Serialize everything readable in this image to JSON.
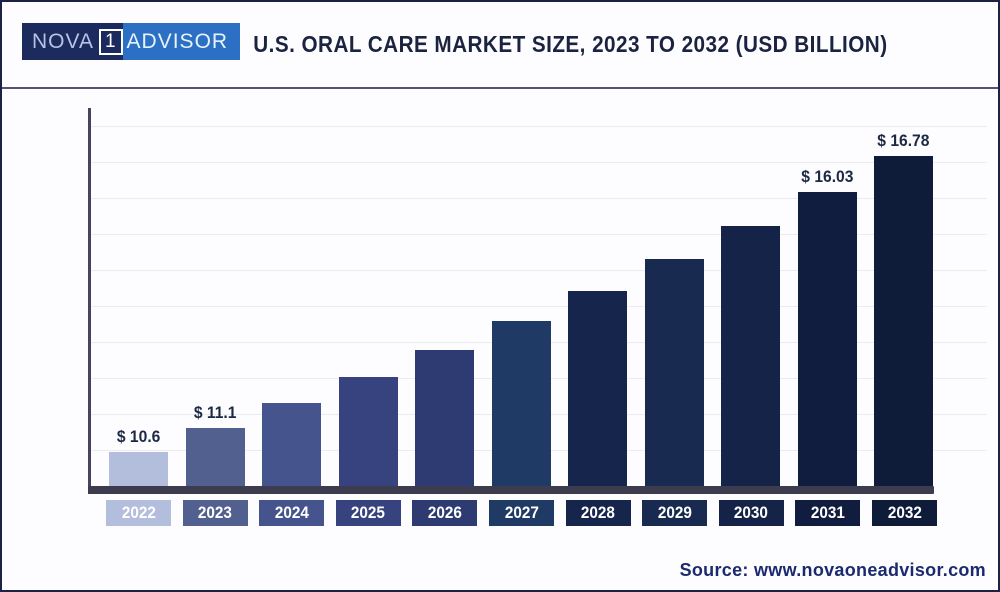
{
  "header": {
    "logo": {
      "part1": "NOVA",
      "part2": "1",
      "part3": "ADVISOR",
      "dark_bg": "#1b2b5e",
      "blue_bg": "#2b70c2"
    },
    "title": "U.S. ORAL CARE MARKET SIZE, 2023 TO 2032 (USD BILLION)"
  },
  "footer": {
    "source_label": "Source: www.novaoneadvisor.com"
  },
  "chart_data": {
    "type": "bar",
    "title": "U.S. ORAL CARE MARKET SIZE, 2023 TO 2032 (USD BILLION)",
    "categories": [
      "2022",
      "2023",
      "2024",
      "2025",
      "2026",
      "2027",
      "2028",
      "2029",
      "2030",
      "2031",
      "2032"
    ],
    "values": [
      10.6,
      11.1,
      11.62,
      12.17,
      12.74,
      13.34,
      13.97,
      14.62,
      15.31,
      16.03,
      16.78
    ],
    "labeled_values": {
      "2022": "$ 10.6",
      "2023": "$ 11.1",
      "2031": "$ 16.03",
      "2032": "$ 16.78"
    },
    "data_labels": [
      "$ 10.6",
      "$ 11.1",
      "",
      "",
      "",
      "",
      "",
      "",
      "",
      "$ 16.03",
      "$ 16.78"
    ],
    "estimated_indices": [
      2,
      3,
      4,
      5,
      6,
      7,
      8
    ],
    "bar_colors": [
      "#b3bedd",
      "#51608f",
      "#45548c",
      "#36437e",
      "#2e3a72",
      "#1f3a64",
      "#16254c",
      "#182a50",
      "#142347",
      "#111d3e",
      "#0f1c39"
    ],
    "xlabel": "",
    "ylabel": "",
    "ylim": [
      9.9,
      17.9
    ],
    "grid": true,
    "legend": "none",
    "axis_color": "#3c3c4e",
    "value_label_color": "#1c2844",
    "source": "Source: www.novaoneadvisor.com"
  }
}
